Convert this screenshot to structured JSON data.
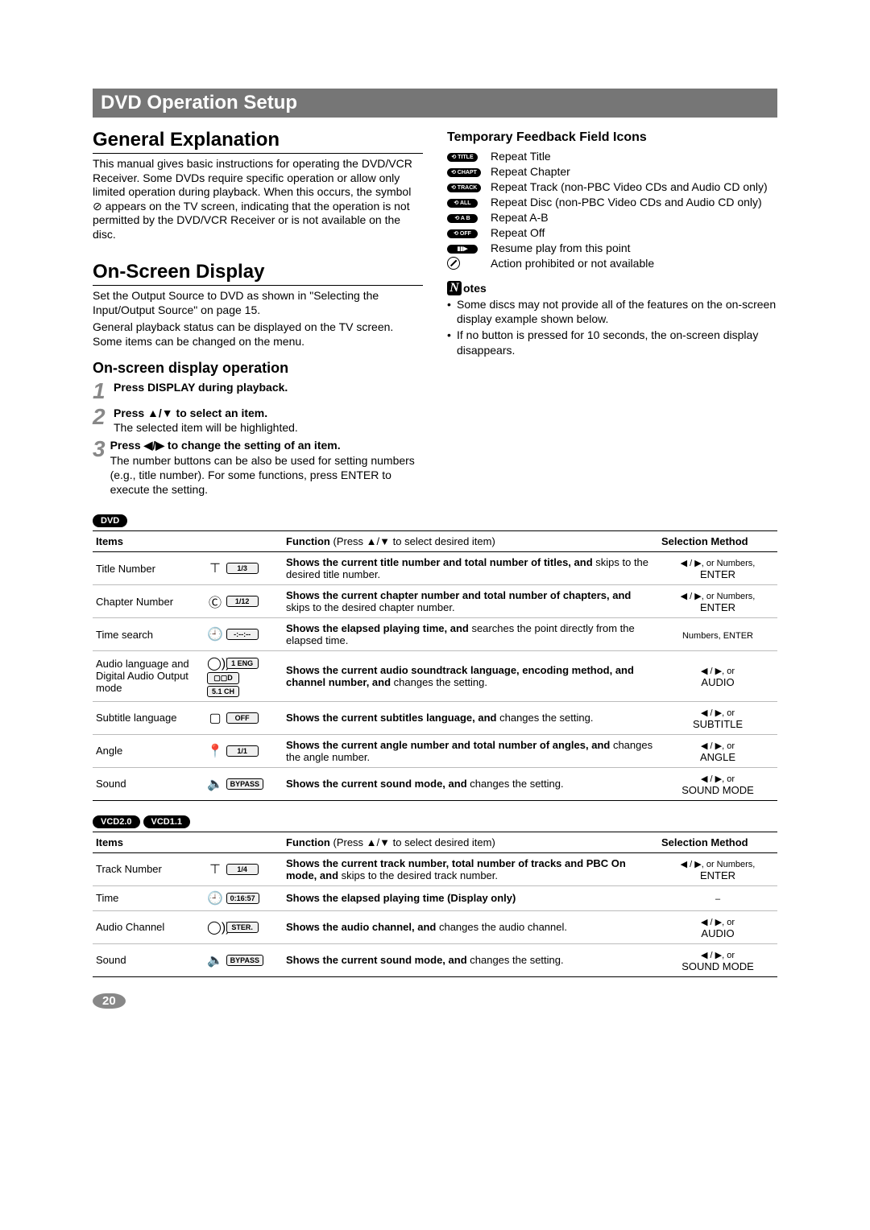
{
  "header": "DVD Operation Setup",
  "sectionA": {
    "title": "General Explanation",
    "body": "This manual gives basic instructions for operating the DVD/VCR Receiver. Some DVDs require specific operation or allow only limited operation during playback. When this occurs, the symbol ⊘ appears on the TV screen, indicating that the operation is not permitted by the DVD/VCR Receiver or is not available on the disc."
  },
  "sectionB": {
    "title": "On-Screen Display",
    "body1": "Set the Output Source to DVD as shown in \"Selecting the Input/Output Source\" on page 15.",
    "body2": "General playback status can be displayed on the TV screen. Some items can be changed on the menu."
  },
  "osdOp": {
    "title": "On-screen display operation",
    "steps": [
      {
        "n": "1",
        "title": "Press DISPLAY during playback.",
        "body": ""
      },
      {
        "n": "2",
        "title": "Press ▲/▼ to select an item.",
        "body": "The selected item will be highlighted."
      },
      {
        "n": "3",
        "title": "Press ◀/▶ to change the setting of an item.",
        "body": "The number buttons can be also be used for setting numbers (e.g., title number). For some functions, press ENTER to execute the setting."
      }
    ]
  },
  "feedback": {
    "title": "Temporary Feedback Field Icons",
    "rows": [
      {
        "badge": "⟲ TITLE",
        "desc": "Repeat Title"
      },
      {
        "badge": "⟲ CHAPT",
        "desc": "Repeat Chapter"
      },
      {
        "badge": "⟲ TRACK",
        "desc": "Repeat Track (non-PBC Video CDs and Audio CD only)"
      },
      {
        "badge": "⟲ ALL",
        "desc": "Repeat Disc (non-PBC Video CDs and Audio CD only)"
      },
      {
        "badge": "⟲ A B",
        "desc": "Repeat A-B"
      },
      {
        "badge": "⟲ OFF",
        "desc": "Repeat Off"
      },
      {
        "badge": "▮▮▶",
        "desc": "Resume play from this point"
      },
      {
        "badge": "⊘",
        "desc": "Action prohibited or not available",
        "plain": true
      }
    ]
  },
  "notes": {
    "label": "otes",
    "items": [
      "Some discs may not provide all of the features on the on-screen display example shown below.",
      "If no button is pressed for 10 seconds, the on-screen display disappears."
    ]
  },
  "tableDVD": {
    "badge": "DVD",
    "head": {
      "items": "Items",
      "func": "Function",
      "funcHint": " (Press ▲/▼ to select desired item)",
      "sel": "Selection Method"
    },
    "rows": [
      {
        "item": "Title Number",
        "iconGlyph": "⊤",
        "osd": "1/3",
        "funcB": "Shows the current title number and total number of titles, and ",
        "func": "skips to the desired title number.",
        "sel1": "◀ / ▶, or Numbers,",
        "sel2": "ENTER"
      },
      {
        "item": "Chapter Number",
        "iconGlyph": "Ⓒ",
        "osd": "1/12",
        "funcB": "Shows the current chapter number and total number of chapters, and ",
        "func": "skips to the desired chapter number.",
        "sel1": "◀ / ▶, or Numbers,",
        "sel2": "ENTER"
      },
      {
        "item": "Time search",
        "iconGlyph": "🕘",
        "osd": "-:--:--",
        "funcB": "Shows the elapsed playing time, and",
        "func": " searches the point directly from the elapsed time.",
        "sel1": "Numbers, ENTER",
        "sel2": ""
      },
      {
        "item": "Audio language and Digital Audio Output mode",
        "iconGlyph": "◯))",
        "osd": "1  ENG\n▢▢D\n5.1  CH",
        "funcB": "Shows the current audio soundtrack language, encoding method, and channel number, and",
        "func": " changes the setting.",
        "sel1": "◀ / ▶, or",
        "sel2": "AUDIO"
      },
      {
        "item": "Subtitle language",
        "iconGlyph": "▢",
        "osd": "OFF",
        "funcB": "Shows the current subtitles language, and",
        "func": " changes the setting.",
        "sel1": "◀ / ▶, or",
        "sel2": "SUBTITLE"
      },
      {
        "item": "Angle",
        "iconGlyph": "📍",
        "osd": "1/1",
        "funcB": "Shows the current angle number and total number of angles, and ",
        "func": "changes the angle number.",
        "sel1": "◀ / ▶, or",
        "sel2": "ANGLE"
      },
      {
        "item": "Sound",
        "iconGlyph": "🔈",
        "osd": "BYPASS",
        "funcB": "Shows the current sound mode, and",
        "func": " changes the setting.",
        "sel1": "◀ / ▶, or",
        "sel2": "SOUND MODE"
      }
    ]
  },
  "tableVCD": {
    "badges": [
      "VCD2.0",
      "VCD1.1"
    ],
    "head": {
      "items": "Items",
      "func": "Function",
      "funcHint": " (Press ▲/▼ to select desired item)",
      "sel": "Selection Method"
    },
    "rows": [
      {
        "item": "Track Number",
        "iconGlyph": "⊤",
        "osd": "1/4",
        "funcB": "Shows the current track number, total number of tracks and PBC On mode, and ",
        "func": "skips to the desired track number.",
        "sel1": "◀ / ▶, or Numbers,",
        "sel2": "ENTER"
      },
      {
        "item": "Time",
        "iconGlyph": "🕘",
        "osd": "0:16:57",
        "funcB": "Shows the elapsed playing time (Display only)",
        "func": "",
        "sel1": "–",
        "sel2": ""
      },
      {
        "item": "Audio Channel",
        "iconGlyph": "◯))",
        "osd": "STER.",
        "funcB": "Shows the audio channel, and",
        "func": " changes the audio channel.",
        "sel1": "◀ / ▶, or",
        "sel2": "AUDIO"
      },
      {
        "item": "Sound",
        "iconGlyph": "🔈",
        "osd": "BYPASS",
        "funcB": "Shows the current sound mode, and",
        "func": " changes the setting.",
        "sel1": "◀ / ▶, or",
        "sel2": "SOUND MODE"
      }
    ]
  },
  "pageNumber": "20"
}
